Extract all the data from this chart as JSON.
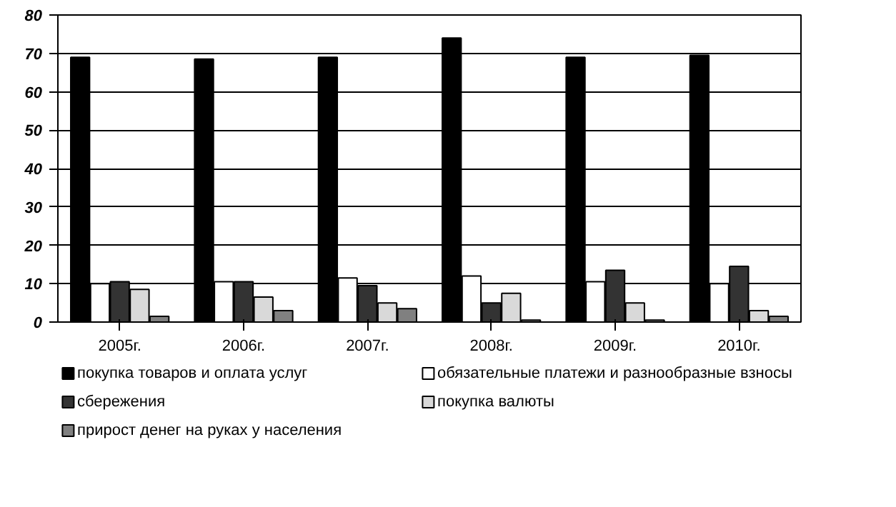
{
  "chart_data": {
    "type": "bar",
    "categories": [
      "2005г.",
      "2006г.",
      "2007г.",
      "2008г.",
      "2009г.",
      "2010г."
    ],
    "series": [
      {
        "name": "покупка товаров и оплата услуг",
        "color": "#000000",
        "values": [
          69,
          68.5,
          69,
          74,
          69,
          69.5
        ]
      },
      {
        "name": "обязательные платежи и разнообразные взносы",
        "color": "#ffffff",
        "values": [
          10,
          10.5,
          11.5,
          12,
          10.5,
          10
        ]
      },
      {
        "name": "сбережения",
        "color": "#333333",
        "values": [
          10.5,
          10.5,
          9.5,
          5,
          13.5,
          14.5
        ]
      },
      {
        "name": "покупка валюты",
        "color": "#d9d9d9",
        "values": [
          8.5,
          6.5,
          5,
          7.5,
          5,
          3
        ]
      },
      {
        "name": "прирост денег на руках у населения",
        "color": "#808080",
        "values": [
          1.5,
          3,
          3.5,
          0.5,
          0.5,
          1.5
        ]
      }
    ],
    "ylim": [
      0,
      80
    ],
    "yticks": [
      0,
      10,
      20,
      30,
      40,
      50,
      60,
      70,
      80
    ],
    "grid": "y",
    "legend": "bottom"
  }
}
